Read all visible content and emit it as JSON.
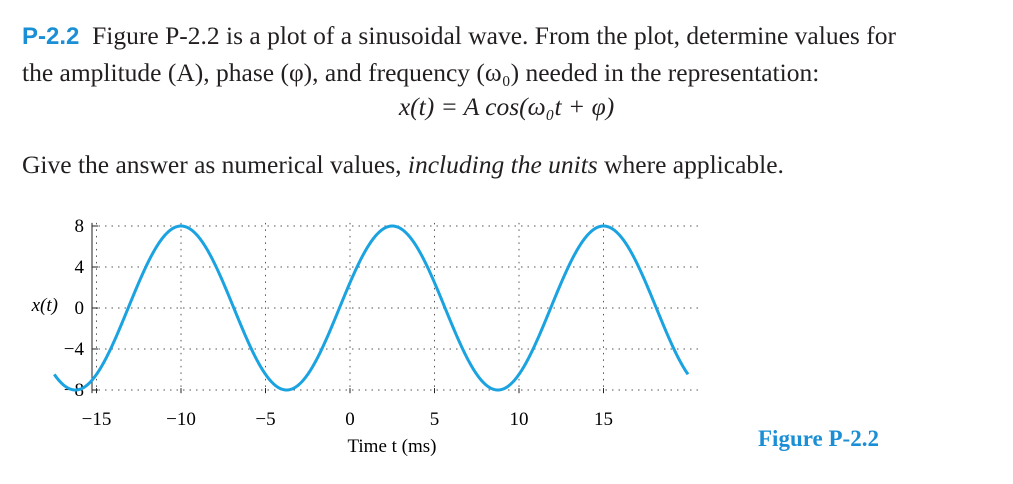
{
  "problem": {
    "number": "P-2.2",
    "line1": "Figure P-2.2 is a plot of a sinusoidal wave. From the plot, determine values for",
    "line2": "the amplitude (A), phase (φ), and frequency (ω₀) needed in the representation:",
    "equation": "x(t) = A cos(ω₀t + φ)",
    "give_pre": "Give the answer as numerical values, ",
    "give_em": "including the units",
    "give_post": " where applicable."
  },
  "figure_caption": "Figure P-2.2",
  "chart_data": {
    "type": "line",
    "title": "",
    "xlabel": "Time t (ms)",
    "ylabel": "x(t)",
    "xlim": [
      -18,
      20
    ],
    "ylim": [
      -9,
      9
    ],
    "xticks": [
      -15,
      -10,
      -5,
      0,
      5,
      10,
      15
    ],
    "xtick_labels": [
      "−15",
      "−10",
      "−5",
      "0",
      "5",
      "10",
      "15"
    ],
    "yticks": [
      8,
      4,
      0,
      -4,
      -8
    ],
    "ytick_labels": [
      "8",
      "4",
      "0",
      "−4",
      "−8"
    ],
    "grid": true,
    "line_color": "#1aa3e0",
    "series": [
      {
        "amplitude": 8,
        "period_ms": 12.5,
        "peak_times_ms": [
          -10,
          2.5,
          15
        ],
        "t_start": -17.5,
        "t_end": 20
      }
    ]
  }
}
